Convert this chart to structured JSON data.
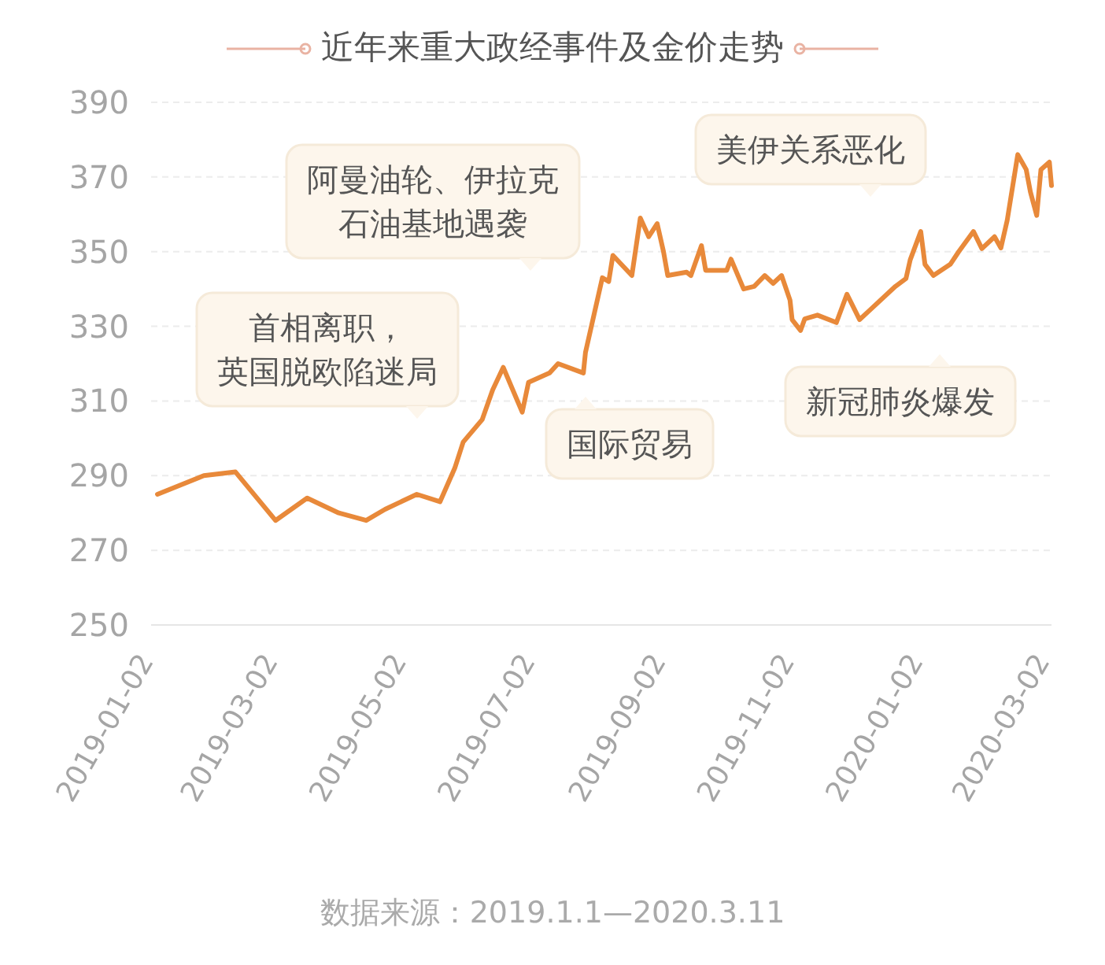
{
  "chart_data": {
    "type": "line",
    "title": "近年来重大政经事件及金价走势",
    "x": [
      "2019-01-05",
      "2019-01-27",
      "2019-02-11",
      "2019-03-02",
      "2019-03-17",
      "2019-04-01",
      "2019-04-14",
      "2019-04-23",
      "2019-05-08",
      "2019-05-19",
      "2019-05-26",
      "2019-05-30",
      "2019-06-08",
      "2019-06-13",
      "2019-06-18",
      "2019-06-27",
      "2019-06-30",
      "2019-07-10",
      "2019-07-14",
      "2019-07-26",
      "2019-07-27",
      "2019-08-04",
      "2019-08-07",
      "2019-08-09",
      "2019-08-18",
      "2019-08-22",
      "2019-08-26",
      "2019-08-30",
      "2019-09-02",
      "2019-09-04",
      "2019-09-13",
      "2019-09-15",
      "2019-09-20",
      "2019-09-22",
      "2019-10-02",
      "2019-10-04",
      "2019-10-10",
      "2019-10-15",
      "2019-10-20",
      "2019-10-24",
      "2019-10-28",
      "2019-11-01",
      "2019-11-02",
      "2019-11-06",
      "2019-11-08",
      "2019-11-14",
      "2019-11-23",
      "2019-11-28",
      "2019-12-04",
      "2019-12-08",
      "2019-12-21",
      "2019-12-26",
      "2019-12-28",
      "2020-01-02",
      "2020-01-04",
      "2020-01-08",
      "2020-01-16",
      "2020-01-20",
      "2020-01-27",
      "2020-01-31",
      "2020-02-06",
      "2020-02-09",
      "2020-02-12",
      "2020-02-17",
      "2020-02-21",
      "2020-02-23",
      "2020-02-26",
      "2020-02-28",
      "2020-03-03",
      "2020-03-04"
    ],
    "series": [
      {
        "color": "#e8893a",
        "values": [
          285,
          290,
          291,
          278,
          284,
          280,
          278,
          281,
          285,
          283,
          292,
          299,
          305,
          313,
          319,
          307,
          315,
          317.5,
          320,
          317.5,
          323,
          343,
          342,
          349,
          343.6,
          359,
          354,
          357.5,
          350,
          343.6,
          344.5,
          343.6,
          351.6,
          345,
          345,
          348,
          340,
          340.7,
          343.6,
          341.5,
          343.6,
          337,
          331.8,
          328.9,
          332,
          333,
          331,
          338.6,
          331.8,
          333.9,
          340.7,
          342.8,
          347.8,
          355.4,
          346.6,
          343.6,
          346.6,
          350,
          355.4,
          350.8,
          354,
          351,
          358.4,
          376,
          372,
          366,
          359.7,
          372,
          374,
          367.7
        ]
      }
    ],
    "xlim": [
      "2019-01-02",
      "2020-03-04"
    ],
    "xticks": [
      "2019-01-02",
      "2019-03-02",
      "2019-05-02",
      "2019-07-02",
      "2019-09-02",
      "2019-11-02",
      "2020-01-02",
      "2020-03-02"
    ],
    "ylim": [
      250,
      390
    ],
    "yticks": [
      250,
      270,
      290,
      310,
      330,
      350,
      370,
      390
    ],
    "grid": "y",
    "annotations": [
      "首相离职，英国脱欧陷迷局",
      "阿曼油轮、伊拉克石油基地遇袭",
      "美伊关系恶化",
      "新冠肺炎爆发",
      "国际贸易",
      "数据来源：2019.1.1—2020.3.11"
    ]
  }
}
